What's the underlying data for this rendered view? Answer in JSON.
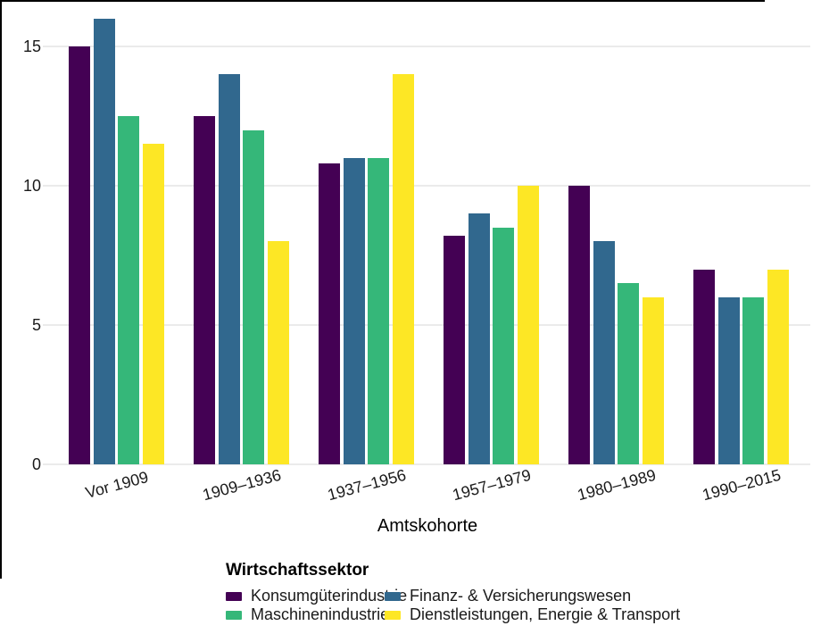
{
  "frame": {
    "border_color": "#000000"
  },
  "chart_data": {
    "type": "bar",
    "title": "",
    "xlabel": "Amtskohorte",
    "ylabel": "",
    "categories": [
      "Vor 1909",
      "1909–1936",
      "1937–1956",
      "1957–1979",
      "1980–1989",
      "1990–2015"
    ],
    "series": [
      {
        "name": "Konsumgüterindustrie",
        "color": "#440154",
        "values": [
          15,
          12.5,
          10.8,
          8.2,
          10,
          7
        ]
      },
      {
        "name": "Finanz- & Versicherungswesen",
        "color": "#31688e",
        "values": [
          16,
          14,
          11,
          9,
          8,
          6
        ]
      },
      {
        "name": "Maschinenindustrie",
        "color": "#35b779",
        "values": [
          12.5,
          12,
          11,
          8.5,
          6.5,
          6
        ]
      },
      {
        "name": "Dienstleistungen, Energie & Transport",
        "color": "#fde725",
        "values": [
          11.5,
          8,
          14,
          10,
          6,
          7
        ]
      }
    ],
    "yticks": [
      0,
      5,
      10,
      15
    ],
    "ylim": [
      0,
      16.3
    ],
    "grid": "horizontal-major-only",
    "gridline_color": "#ebebeb",
    "background_color": "#ffffff",
    "legend": {
      "title": "Wirtschaftssektor",
      "position": "bottom",
      "columns": 2
    }
  }
}
